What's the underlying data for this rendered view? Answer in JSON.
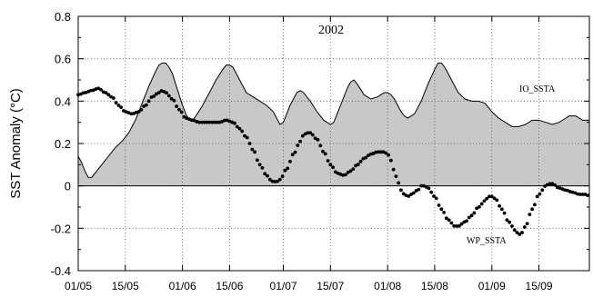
{
  "chart_data": {
    "type": "line",
    "title": "2002",
    "ylabel": "SST Anomaly (°C)",
    "xlabel": "",
    "ylim": [
      -0.4,
      0.8
    ],
    "yticks": [
      "0.8",
      "0.6",
      "0.4",
      "0.2",
      "0",
      "-0.2",
      "-0.4"
    ],
    "ytick_values": [
      0.8,
      0.6,
      0.4,
      0.2,
      0,
      -0.2,
      -0.4
    ],
    "xlim": [
      0,
      152
    ],
    "xticks": [
      "01/05",
      "15/05",
      "01/06",
      "15/06",
      "01/07",
      "15/07",
      "01/08",
      "15/08",
      "01/09",
      "15/09"
    ],
    "xtick_values": [
      0,
      14,
      31,
      45,
      61,
      75,
      92,
      106,
      123,
      137
    ],
    "grid": "dotted",
    "series": [
      {
        "name": "IO_SSTA",
        "style": "line-filled",
        "color": "#000000",
        "fill": "#c8c8c8",
        "points": [
          [
            0,
            0.14
          ],
          [
            1,
            0.11
          ],
          [
            2,
            0.07
          ],
          [
            3,
            0.04
          ],
          [
            4,
            0.04
          ],
          [
            5,
            0.06
          ],
          [
            7,
            0.1
          ],
          [
            9,
            0.14
          ],
          [
            11,
            0.18
          ],
          [
            13,
            0.21
          ],
          [
            15,
            0.25
          ],
          [
            17,
            0.31
          ],
          [
            19,
            0.39
          ],
          [
            21,
            0.47
          ],
          [
            23,
            0.54
          ],
          [
            24,
            0.57
          ],
          [
            25,
            0.58
          ],
          [
            26,
            0.58
          ],
          [
            27,
            0.56
          ],
          [
            28,
            0.53
          ],
          [
            29,
            0.48
          ],
          [
            30,
            0.43
          ],
          [
            31,
            0.38
          ],
          [
            32,
            0.34
          ],
          [
            33,
            0.31
          ],
          [
            34,
            0.31
          ],
          [
            35,
            0.33
          ],
          [
            37,
            0.38
          ],
          [
            39,
            0.44
          ],
          [
            41,
            0.5
          ],
          [
            43,
            0.55
          ],
          [
            44,
            0.57
          ],
          [
            45,
            0.57
          ],
          [
            46,
            0.56
          ],
          [
            48,
            0.5
          ],
          [
            50,
            0.44
          ],
          [
            52,
            0.42
          ],
          [
            54,
            0.4
          ],
          [
            56,
            0.38
          ],
          [
            58,
            0.35
          ],
          [
            59,
            0.32
          ],
          [
            60,
            0.29
          ],
          [
            61,
            0.3
          ],
          [
            62,
            0.34
          ],
          [
            63,
            0.38
          ],
          [
            64,
            0.41
          ],
          [
            65,
            0.44
          ],
          [
            66,
            0.45
          ],
          [
            67,
            0.44
          ],
          [
            69,
            0.4
          ],
          [
            71,
            0.35
          ],
          [
            73,
            0.31
          ],
          [
            75,
            0.29
          ],
          [
            76,
            0.3
          ],
          [
            78,
            0.38
          ],
          [
            80,
            0.46
          ],
          [
            81,
            0.49
          ],
          [
            82,
            0.5
          ],
          [
            83,
            0.48
          ],
          [
            85,
            0.43
          ],
          [
            87,
            0.41
          ],
          [
            89,
            0.42
          ],
          [
            90,
            0.43
          ],
          [
            91,
            0.44
          ],
          [
            92,
            0.44
          ],
          [
            93,
            0.43
          ],
          [
            94,
            0.41
          ],
          [
            95,
            0.38
          ],
          [
            96,
            0.35
          ],
          [
            97,
            0.33
          ],
          [
            98,
            0.32
          ],
          [
            100,
            0.34
          ],
          [
            102,
            0.4
          ],
          [
            104,
            0.48
          ],
          [
            106,
            0.55
          ],
          [
            107,
            0.58
          ],
          [
            108,
            0.58
          ],
          [
            109,
            0.56
          ],
          [
            111,
            0.5
          ],
          [
            113,
            0.44
          ],
          [
            115,
            0.41
          ],
          [
            117,
            0.4
          ],
          [
            119,
            0.4
          ],
          [
            121,
            0.39
          ],
          [
            123,
            0.35
          ],
          [
            125,
            0.32
          ],
          [
            127,
            0.3
          ],
          [
            129,
            0.28
          ],
          [
            131,
            0.28
          ],
          [
            133,
            0.29
          ],
          [
            135,
            0.31
          ],
          [
            137,
            0.31
          ],
          [
            139,
            0.3
          ],
          [
            141,
            0.29
          ],
          [
            143,
            0.3
          ],
          [
            145,
            0.32
          ],
          [
            146,
            0.33
          ],
          [
            148,
            0.33
          ],
          [
            150,
            0.31
          ],
          [
            152,
            0.31
          ]
        ],
        "label": "IO_SSTA"
      },
      {
        "name": "WP_SSTA",
        "style": "dotted-markers",
        "color": "#000000",
        "points": [
          [
            0,
            0.43
          ],
          [
            2,
            0.44
          ],
          [
            4,
            0.45
          ],
          [
            6,
            0.46
          ],
          [
            8,
            0.44
          ],
          [
            10,
            0.42
          ],
          [
            12,
            0.38
          ],
          [
            14,
            0.35
          ],
          [
            16,
            0.34
          ],
          [
            18,
            0.35
          ],
          [
            20,
            0.38
          ],
          [
            22,
            0.42
          ],
          [
            24,
            0.44
          ],
          [
            25,
            0.45
          ],
          [
            26,
            0.44
          ],
          [
            28,
            0.41
          ],
          [
            30,
            0.36
          ],
          [
            32,
            0.32
          ],
          [
            34,
            0.31
          ],
          [
            36,
            0.3
          ],
          [
            38,
            0.3
          ],
          [
            40,
            0.3
          ],
          [
            42,
            0.3
          ],
          [
            44,
            0.31
          ],
          [
            46,
            0.3
          ],
          [
            48,
            0.27
          ],
          [
            50,
            0.23
          ],
          [
            52,
            0.17
          ],
          [
            54,
            0.1
          ],
          [
            56,
            0.05
          ],
          [
            57,
            0.03
          ],
          [
            58,
            0.02
          ],
          [
            59,
            0.02
          ],
          [
            60,
            0.03
          ],
          [
            62,
            0.08
          ],
          [
            64,
            0.15
          ],
          [
            66,
            0.21
          ],
          [
            67,
            0.24
          ],
          [
            68,
            0.25
          ],
          [
            69,
            0.25
          ],
          [
            71,
            0.22
          ],
          [
            73,
            0.16
          ],
          [
            75,
            0.1
          ],
          [
            77,
            0.06
          ],
          [
            79,
            0.05
          ],
          [
            81,
            0.07
          ],
          [
            83,
            0.1
          ],
          [
            85,
            0.13
          ],
          [
            87,
            0.15
          ],
          [
            89,
            0.16
          ],
          [
            90,
            0.16
          ],
          [
            91,
            0.16
          ],
          [
            92,
            0.15
          ],
          [
            93,
            0.12
          ],
          [
            94,
            0.07
          ],
          [
            95,
            0.02
          ],
          [
            96,
            -0.02
          ],
          [
            97,
            -0.04
          ],
          [
            98,
            -0.05
          ],
          [
            99,
            -0.04
          ],
          [
            101,
            -0.02
          ],
          [
            102,
            0.0
          ],
          [
            103,
            0.0
          ],
          [
            104,
            -0.01
          ],
          [
            106,
            -0.05
          ],
          [
            108,
            -0.11
          ],
          [
            110,
            -0.16
          ],
          [
            112,
            -0.19
          ],
          [
            113,
            -0.19
          ],
          [
            115,
            -0.17
          ],
          [
            117,
            -0.14
          ],
          [
            119,
            -0.1
          ],
          [
            121,
            -0.07
          ],
          [
            122,
            -0.05
          ],
          [
            123,
            -0.05
          ],
          [
            124,
            -0.06
          ],
          [
            126,
            -0.11
          ],
          [
            128,
            -0.17
          ],
          [
            130,
            -0.21
          ],
          [
            131,
            -0.23
          ],
          [
            132,
            -0.22
          ],
          [
            133,
            -0.19
          ],
          [
            135,
            -0.11
          ],
          [
            137,
            -0.04
          ],
          [
            139,
            0.0
          ],
          [
            140,
            0.01
          ],
          [
            141,
            0.01
          ],
          [
            143,
            -0.01
          ],
          [
            145,
            -0.02
          ],
          [
            147,
            -0.03
          ],
          [
            149,
            -0.04
          ],
          [
            151,
            -0.04
          ],
          [
            152,
            -0.05
          ]
        ],
        "label": "WP_SSTA"
      }
    ]
  }
}
